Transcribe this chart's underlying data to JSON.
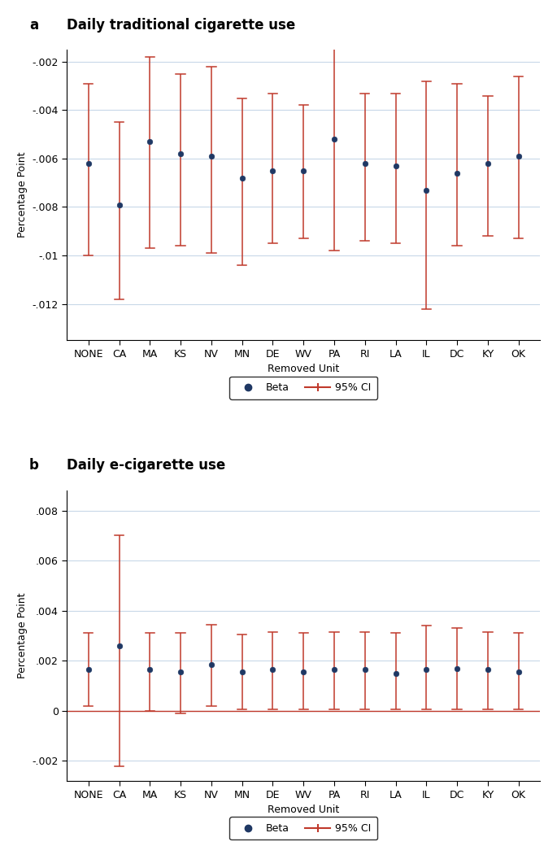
{
  "categories": [
    "NONE",
    "CA",
    "MA",
    "KS",
    "NV",
    "MN",
    "DE",
    "WV",
    "PA",
    "RI",
    "LA",
    "IL",
    "DC",
    "KY",
    "OK"
  ],
  "panel_a": {
    "title": "Daily traditional cigarette use",
    "panel_label": "a",
    "ylabel": "Percentage Point",
    "xlabel": "Removed Unit",
    "ylim": [
      -0.0135,
      -0.0015
    ],
    "yticks": [
      -0.012,
      -0.01,
      -0.008,
      -0.006,
      -0.004,
      -0.002
    ],
    "ytick_labels": [
      "-.012",
      "-.01",
      "-.008",
      "-.006",
      "-.004",
      "-.002"
    ],
    "beta": [
      -0.0062,
      -0.0079,
      -0.0053,
      -0.0058,
      -0.0059,
      -0.0068,
      -0.0065,
      -0.0065,
      -0.0052,
      -0.0062,
      -0.0063,
      -0.0073,
      -0.0066,
      -0.0062,
      -0.0059
    ],
    "ci_low": [
      -0.01,
      -0.0118,
      -0.0097,
      -0.0096,
      -0.0099,
      -0.0104,
      -0.0095,
      -0.0093,
      -0.0098,
      -0.0094,
      -0.0095,
      -0.0122,
      -0.0096,
      -0.0092,
      -0.0093
    ],
    "ci_high": [
      -0.0029,
      -0.0045,
      -0.0018,
      -0.0025,
      -0.0022,
      -0.0035,
      -0.0033,
      -0.0038,
      -0.001,
      -0.0033,
      -0.0033,
      -0.0028,
      -0.0029,
      -0.0034,
      -0.0026
    ],
    "hline": null
  },
  "panel_b": {
    "title": "Daily e-cigarette use",
    "panel_label": "b",
    "ylabel": "Percentage Point",
    "xlabel": "Removed Unit",
    "ylim": [
      -0.0028,
      0.0088
    ],
    "yticks": [
      -0.002,
      0.0,
      0.002,
      0.004,
      0.006,
      0.008
    ],
    "ytick_labels": [
      "-.002",
      "0",
      ".002",
      ".004",
      ".006",
      ".008"
    ],
    "hline": 0.0,
    "beta": [
      0.00165,
      0.0026,
      0.00165,
      0.00155,
      0.00185,
      0.00155,
      0.00165,
      0.00155,
      0.00165,
      0.00165,
      0.0015,
      0.00165,
      0.0017,
      0.00165,
      0.00155
    ],
    "ci_low": [
      0.0002,
      -0.0022,
      0.0,
      -0.0001,
      0.0002,
      5e-05,
      5e-05,
      5e-05,
      5e-05,
      5e-05,
      5e-05,
      5e-05,
      5e-05,
      5e-05,
      5e-05
    ],
    "ci_high": [
      0.0031,
      0.007,
      0.0031,
      0.0031,
      0.00345,
      0.00305,
      0.00315,
      0.0031,
      0.00315,
      0.00315,
      0.0031,
      0.0034,
      0.0033,
      0.00315,
      0.0031
    ]
  },
  "dot_color": "#1f3864",
  "ci_color": "#c0392b",
  "grid_color": "#c8d8e8",
  "background_color": "#ffffff",
  "font_size": 9,
  "title_font_size": 12,
  "label_font_size": 9
}
